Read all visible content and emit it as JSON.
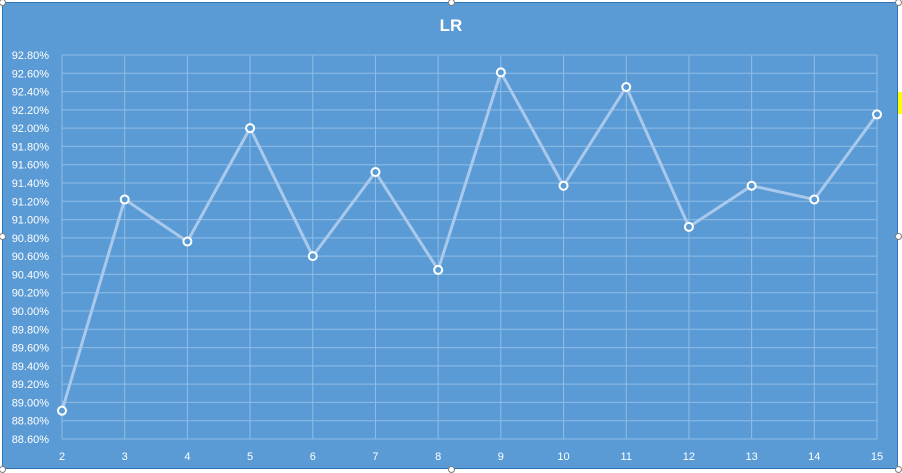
{
  "chart_data": {
    "type": "line",
    "title": "LR",
    "xlabel": "",
    "ylabel": "",
    "x": [
      2,
      3,
      4,
      5,
      6,
      7,
      8,
      9,
      10,
      11,
      12,
      13,
      14,
      15
    ],
    "y_tick_labels": [
      "92.80%",
      "92.60%",
      "92.40%",
      "92.20%",
      "92.00%",
      "91.80%",
      "91.60%",
      "91.40%",
      "91.20%",
      "91.00%",
      "90.80%",
      "90.60%",
      "90.40%",
      "90.20%",
      "90.00%",
      "89.80%",
      "89.60%",
      "89.40%",
      "89.20%",
      "89.00%",
      "88.80%",
      "88.60%"
    ],
    "ylim": [
      88.6,
      92.8
    ],
    "series": [
      {
        "values": [
          88.91,
          91.22,
          90.76,
          92.0,
          90.6,
          91.52,
          90.45,
          92.61,
          91.37,
          92.45,
          90.92,
          91.37,
          91.22,
          92.15
        ]
      }
    ],
    "grid": true,
    "legend": "none",
    "colors": {
      "background": "#5b9bd5",
      "line": "#a9c9ec",
      "marker_fill": "#5b9bd5",
      "marker_stroke": "#ffffff",
      "grid": "#8fbde6",
      "text": "#ffffff"
    }
  }
}
